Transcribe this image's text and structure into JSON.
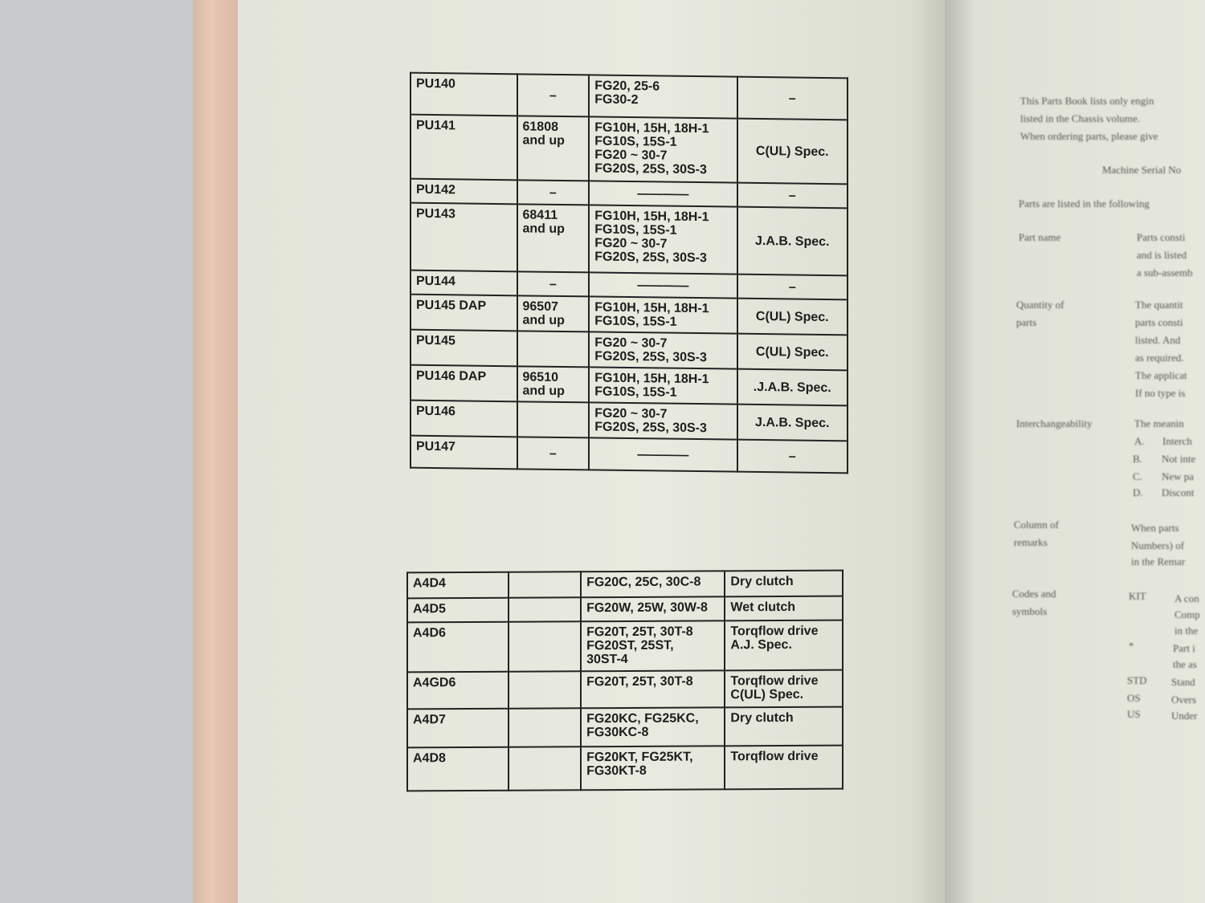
{
  "table1": {
    "rows": [
      [
        "PU140",
        "–",
        "FG20, 25-6\nFG30-2",
        "–"
      ],
      [
        "PU141",
        "61808\n  and up",
        "FG10H, 15H, 18H-1\nFG10S, 15S-1\nFG20 ~ 30-7\nFG20S, 25S, 30S-3",
        "C(UL) Spec."
      ],
      [
        "PU142",
        "–",
        "————",
        "–"
      ],
      [
        "PU143",
        "68411\n  and up",
        "FG10H, 15H, 18H-1\nFG10S, 15S-1\nFG20 ~ 30-7\nFG20S, 25S, 30S-3",
        "J.A.B. Spec."
      ],
      [
        "PU144",
        "–",
        "————",
        "–"
      ],
      [
        "PU145 DAP",
        "96507\n  and up",
        "FG10H, 15H, 18H-1\nFG10S, 15S-1",
        "C(UL) Spec."
      ],
      [
        "PU145",
        "",
        "FG20 ~ 30-7\nFG20S, 25S, 30S-3",
        "C(UL) Spec."
      ],
      [
        "PU146 DAP",
        "96510\n  and up",
        "FG10H, 15H, 18H-1\nFG10S, 15S-1",
        ".J.A.B. Spec."
      ],
      [
        "PU146",
        "",
        "FG20 ~ 30-7\nFG20S, 25S, 30S-3",
        "J.A.B. Spec."
      ],
      [
        "PU147",
        "–",
        "————",
        "–"
      ]
    ]
  },
  "table2": {
    "rows": [
      [
        "A4D4",
        "",
        "FG20C, 25C, 30C-8",
        "Dry clutch"
      ],
      [
        "A4D5",
        "",
        "FG20W, 25W, 30W-8",
        "Wet clutch"
      ],
      [
        "A4D6",
        "",
        "FG20T, 25T, 30T-8\nFG20ST, 25ST,\n  30ST-4",
        "Torqflow drive\nA.J. Spec."
      ],
      [
        "A4GD6",
        "",
        "FG20T, 25T, 30T-8",
        "Torqflow drive\nC(UL) Spec."
      ],
      [
        "A4D7",
        "",
        "FG20KC, FG25KC,\n  FG30KC-8",
        "Dry clutch"
      ],
      [
        "A4D8",
        "",
        "FG20KT, FG25KT,\n  FG30KT-8",
        "Torqflow drive"
      ]
    ]
  },
  "right_page": {
    "lines": [
      "This Parts Book lists only engin",
      "listed in the Chassis volume.",
      "When ordering parts, please give",
      "Machine Serial No",
      "Parts are listed in the following",
      "Part name",
      "Parts consti",
      "and is listed",
      "a sub-assemb",
      "Quantity of",
      "parts",
      "The quantit",
      "parts consti",
      "listed. And",
      "as required.",
      "The applicat",
      "If no type is",
      "Interchangeability",
      "The meanin",
      "A.",
      "Interch",
      "B.",
      "Not inte",
      "C.",
      "New pa",
      "D.",
      "Discont",
      "Column of",
      "remarks",
      "When parts",
      "Numbers) of",
      "in the Remar",
      "Codes and",
      "symbols",
      "KIT",
      "A con",
      "Comp",
      "in the",
      "*",
      "Part i",
      "the as",
      "STD",
      "Stand",
      "OS",
      "Overs",
      "US",
      "Under"
    ]
  }
}
